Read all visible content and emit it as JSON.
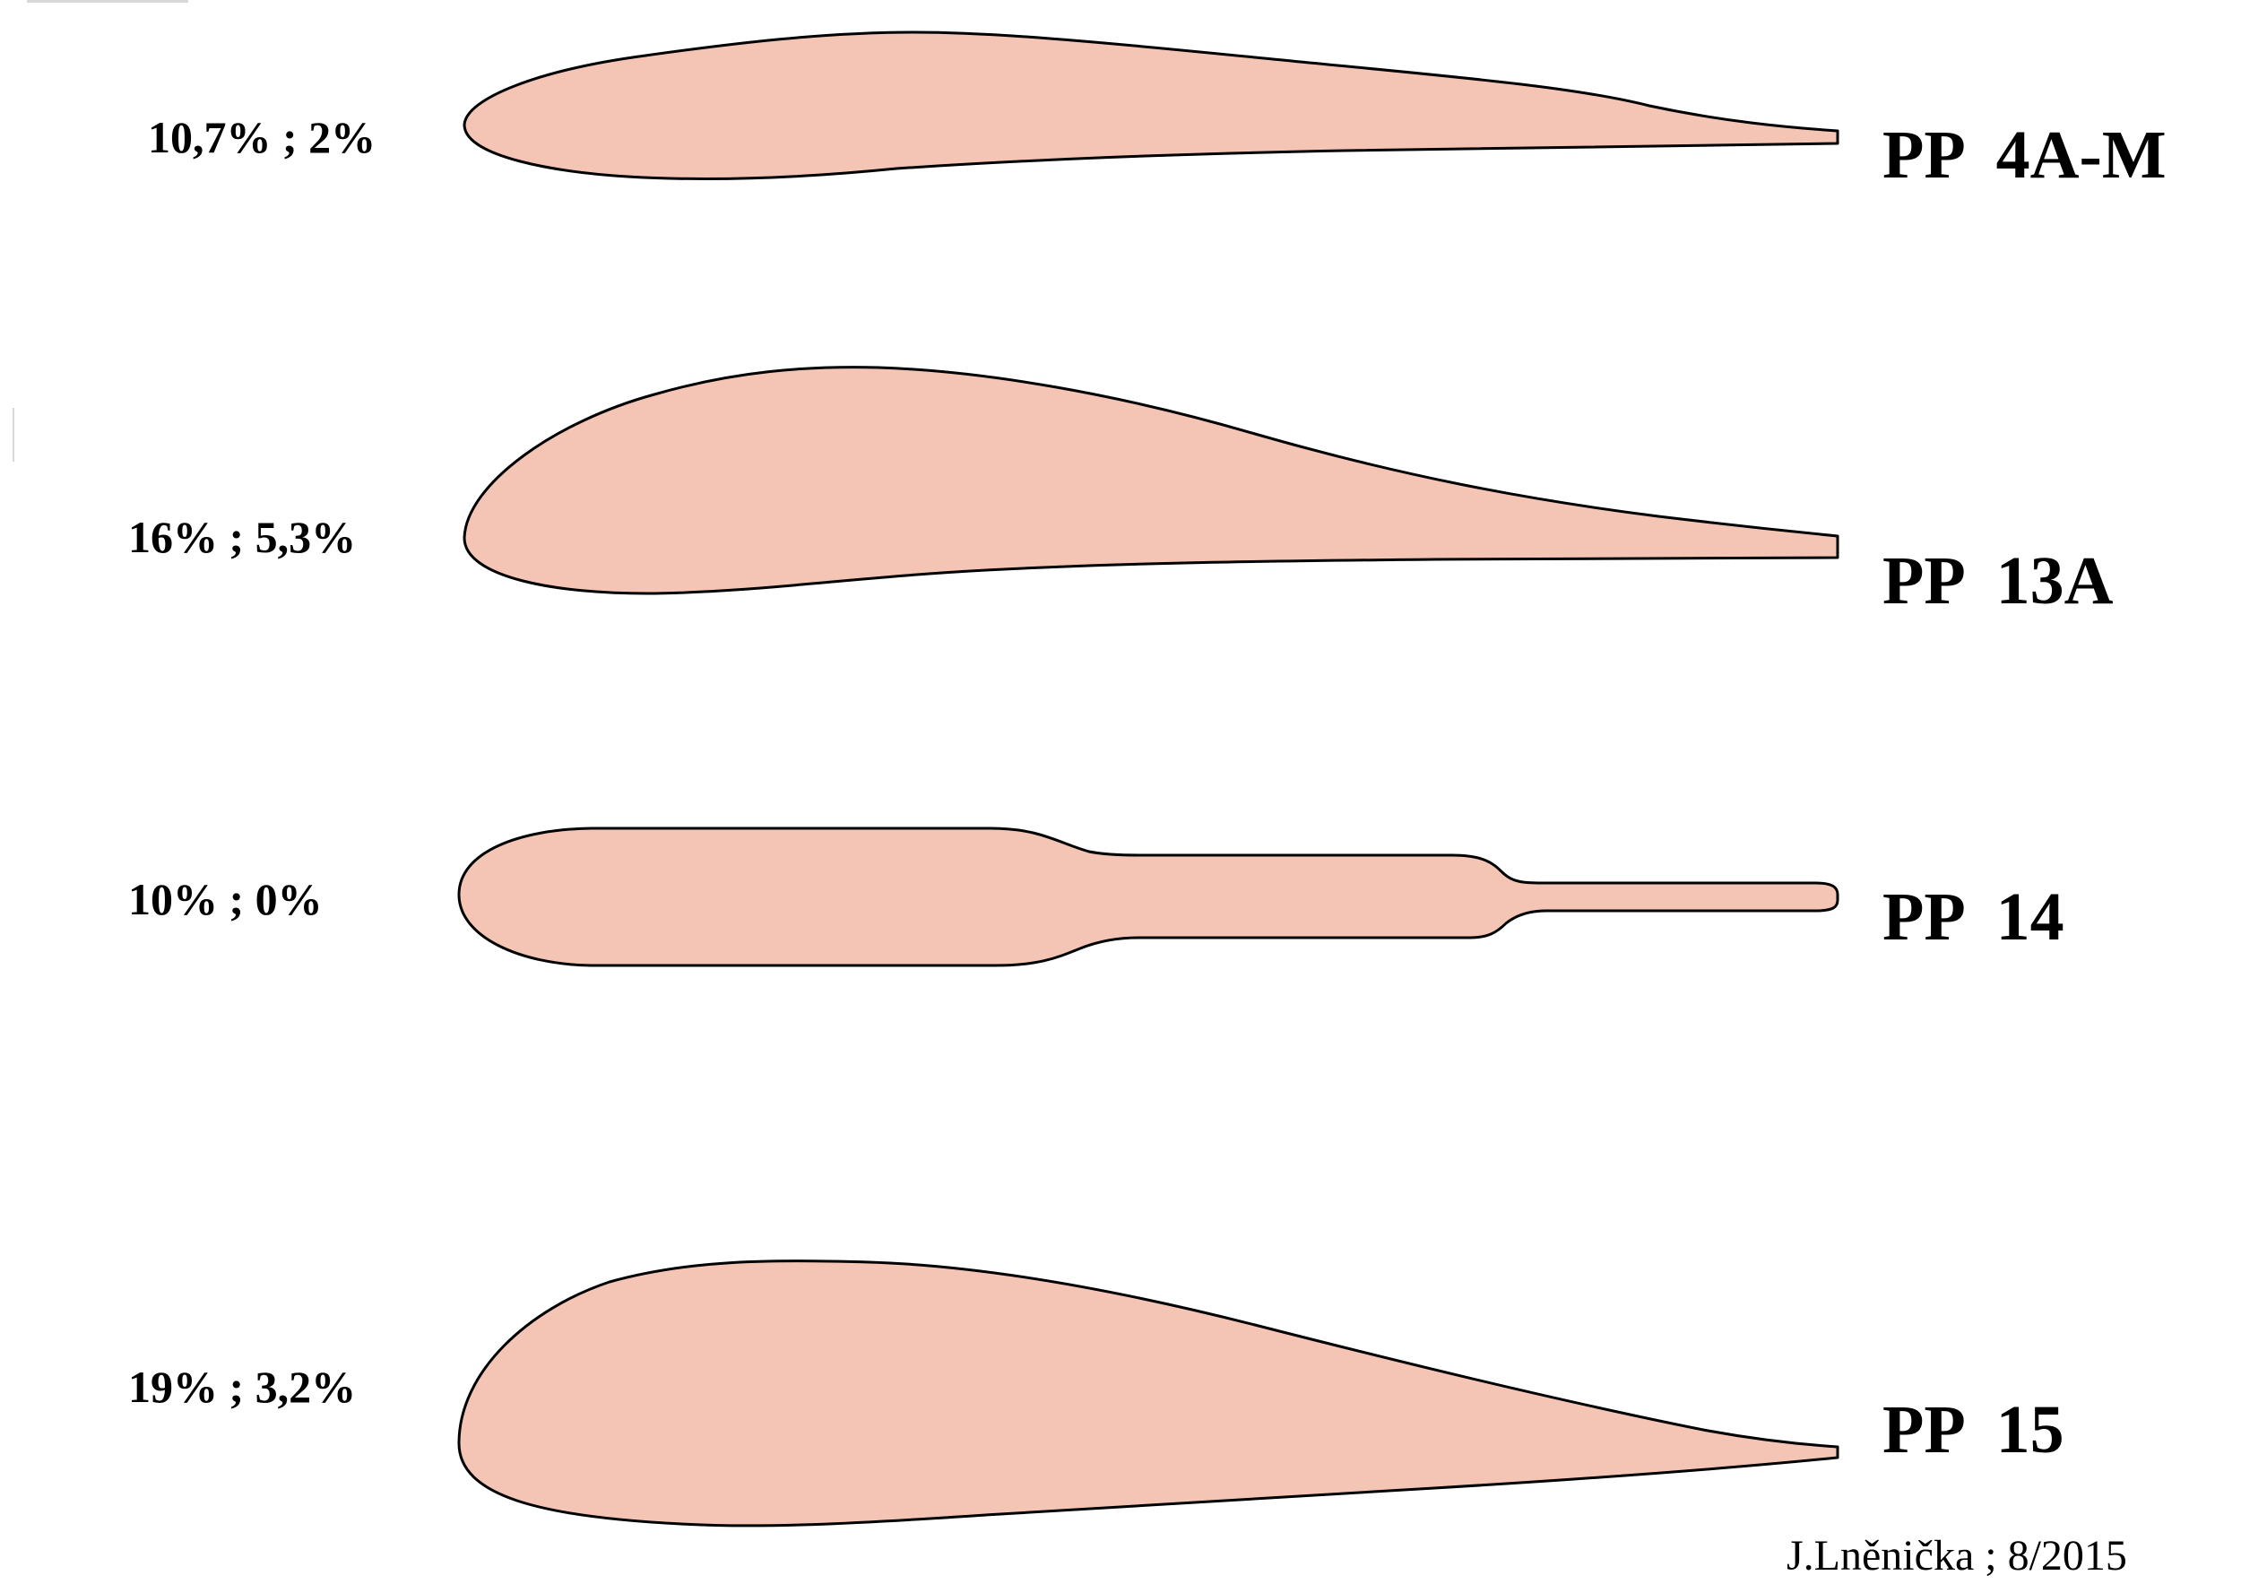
{
  "colors": {
    "profile_fill": "#f4c4b4",
    "profile_stroke": "#000000"
  },
  "profiles": [
    {
      "params": "10,7% ; 2%",
      "name": "PP  4A-M"
    },
    {
      "params": "16% ; 5,3%",
      "name": "PP  13A"
    },
    {
      "params": "10% ; 0%",
      "name": "PP  14"
    },
    {
      "params": "19% ; 3,2%",
      "name": "PP  15"
    }
  ],
  "author": "J.Lněnička ; 8/2015"
}
